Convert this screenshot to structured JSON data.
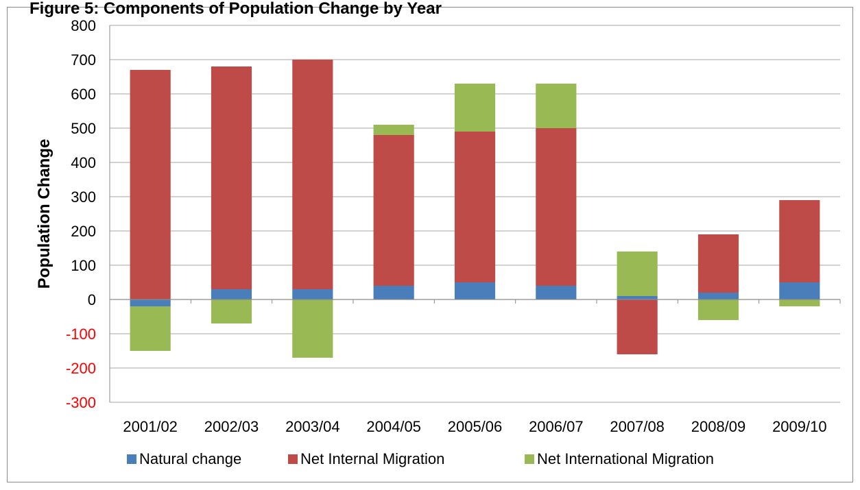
{
  "header": {
    "title_fragment": "Figure 5: Components of Population Change by Year"
  },
  "chart_data": {
    "type": "bar",
    "stacked": true,
    "categories": [
      "2001/02",
      "2002/03",
      "2003/04",
      "2004/05",
      "2005/06",
      "2006/07",
      "2007/08",
      "2008/09",
      "2009/10"
    ],
    "series": [
      {
        "name": "Natural change",
        "color": "#4a7ebb",
        "values": [
          -20,
          30,
          30,
          40,
          50,
          40,
          10,
          20,
          50
        ]
      },
      {
        "name": "Net Internal Migration",
        "color": "#be4b48",
        "values": [
          670,
          650,
          670,
          440,
          440,
          460,
          -160,
          170,
          240
        ]
      },
      {
        "name": "Net International Migration",
        "color": "#98b954",
        "values": [
          -130,
          -70,
          -170,
          30,
          140,
          130,
          130,
          -60,
          -20
        ]
      }
    ],
    "xlabel": "",
    "ylabel": "Population Change",
    "ylim": [
      -300,
      800
    ],
    "yticks": [
      "-300",
      "-200",
      "-100",
      "0",
      "100",
      "200",
      "300",
      "400",
      "500",
      "600",
      "700",
      "800"
    ],
    "negative_tick_color": "#ff0000",
    "grid": true,
    "legend_position": "bottom"
  }
}
